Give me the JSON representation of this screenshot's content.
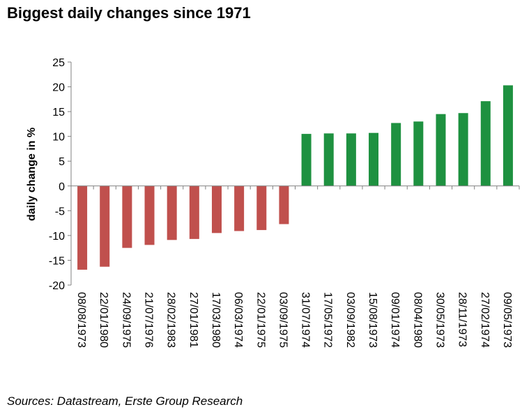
{
  "chart_data": {
    "type": "bar",
    "title": "Biggest daily changes since 1971",
    "xlabel": "",
    "ylabel": "daily change in %",
    "ylim": [
      -20,
      25
    ],
    "yticks": [
      25,
      20,
      15,
      10,
      5,
      0,
      -5,
      -10,
      -15,
      -20
    ],
    "grid": false,
    "categories": [
      "08/08/1973",
      "22/01/1980",
      "24/09/1975",
      "21/07/1976",
      "28/02/1983",
      "27/01/1981",
      "17/03/1980",
      "06/03/1974",
      "22/01/1975",
      "03/09/1975",
      "31/07/1974",
      "17/05/1972",
      "03/09/1982",
      "15/08/1973",
      "09/01/1974",
      "08/04/1980",
      "30/05/1973",
      "28/11/1973",
      "27/02/1974",
      "09/05/1973"
    ],
    "values": [
      -16.9,
      -16.3,
      -12.5,
      -11.9,
      -10.9,
      -10.7,
      -9.5,
      -9.1,
      -8.9,
      -7.7,
      10.5,
      10.6,
      10.6,
      10.7,
      12.7,
      13.0,
      14.5,
      14.7,
      17.1,
      20.3
    ],
    "colors": {
      "negative": "#c0504d",
      "positive": "#1e9140"
    },
    "source": "Sources: Datastream, Erste Group Research"
  }
}
